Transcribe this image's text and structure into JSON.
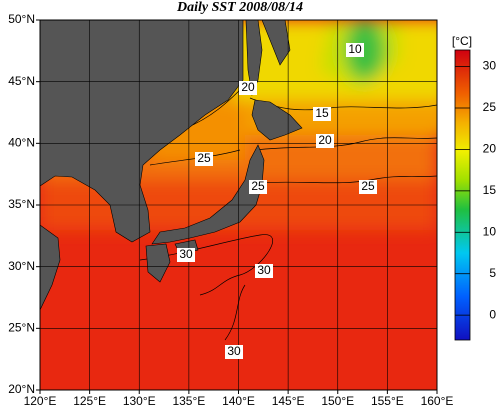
{
  "title": "Daily SST 2008/08/14",
  "lon_ticks": [
    {
      "value": 120,
      "label": "120°E"
    },
    {
      "value": 125,
      "label": "125°E"
    },
    {
      "value": 130,
      "label": "130°E"
    },
    {
      "value": 135,
      "label": "135°E"
    },
    {
      "value": 140,
      "label": "140°E"
    },
    {
      "value": 145,
      "label": "145°E"
    },
    {
      "value": 150,
      "label": "150°E"
    },
    {
      "value": 155,
      "label": "155°E"
    },
    {
      "value": 160,
      "label": "160°E"
    }
  ],
  "lat_ticks": [
    {
      "value": 20,
      "label": "20°N"
    },
    {
      "value": 25,
      "label": "25°N"
    },
    {
      "value": 30,
      "label": "30°N"
    },
    {
      "value": 35,
      "label": "35°N"
    },
    {
      "value": 40,
      "label": "40°N"
    },
    {
      "value": 45,
      "label": "45°N"
    },
    {
      "value": 50,
      "label": "50°N"
    }
  ],
  "colorbar": {
    "label": "[°C]",
    "lim": [
      -3,
      32
    ],
    "ticks": [
      0,
      5,
      10,
      15,
      20,
      25,
      30
    ]
  },
  "contour_labels": [
    10,
    20,
    15,
    20,
    25,
    25,
    25,
    30,
    30,
    30
  ]
}
